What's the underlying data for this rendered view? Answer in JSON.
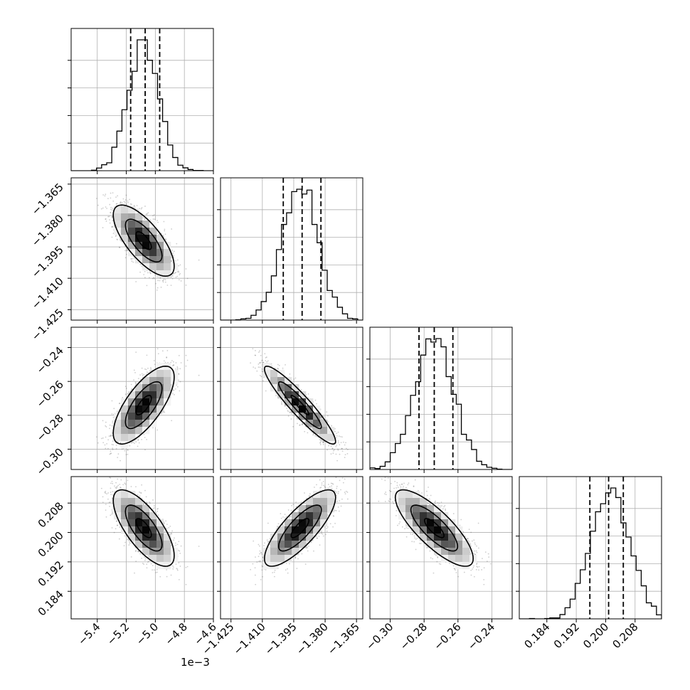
{
  "chart_data": {
    "type": "corner",
    "grid": true,
    "offset_label": "1e−3",
    "parameters": [
      {
        "mean": -5.08,
        "sd": 0.105,
        "lim": [
          -5.58,
          -4.6
        ],
        "ticks": [
          -5.4,
          -5.2,
          -5.0,
          -4.8,
          -4.6
        ],
        "tick_labels": [
          "−5.4",
          "−5.2",
          "−5.0",
          "−4.8",
          "−4.6"
        ],
        "quantiles": [
          -5.17,
          -5.07,
          -4.97
        ]
      },
      {
        "mean": -1.392,
        "sd": 0.0085,
        "lim": [
          -1.43,
          -1.362
        ],
        "ticks": [
          -1.425,
          -1.41,
          -1.395,
          -1.38,
          -1.365
        ],
        "tick_labels": [
          "−1.425",
          "−1.410",
          "−1.395",
          "−1.380",
          "−1.365"
        ],
        "quantiles": [
          -1.4,
          -1.391,
          -1.382
        ]
      },
      {
        "mean": -0.274,
        "sd": 0.0115,
        "lim": [
          -0.312,
          -0.228
        ],
        "ticks": [
          -0.3,
          -0.28,
          -0.26,
          -0.24
        ],
        "tick_labels": [
          "−0.30",
          "−0.28",
          "−0.26",
          "−0.24"
        ],
        "quantiles": [
          -0.283,
          -0.274,
          -0.263
        ]
      },
      {
        "mean": 0.2012,
        "sd": 0.0052,
        "lim": [
          0.1765,
          0.2152
        ],
        "ticks": [
          0.184,
          0.192,
          0.2,
          0.208
        ],
        "tick_labels": [
          "0.184",
          "0.192",
          "0.200",
          "0.208"
        ],
        "quantiles": [
          0.1957,
          0.2008,
          0.2048
        ]
      }
    ],
    "correlations": [
      [
        1.0,
        -0.72,
        0.72,
        -0.72
      ],
      [
        -0.72,
        1.0,
        -0.93,
        0.8
      ],
      [
        0.72,
        -0.93,
        1.0,
        -0.8
      ],
      [
        -0.72,
        0.8,
        -0.8,
        1.0
      ]
    ]
  }
}
